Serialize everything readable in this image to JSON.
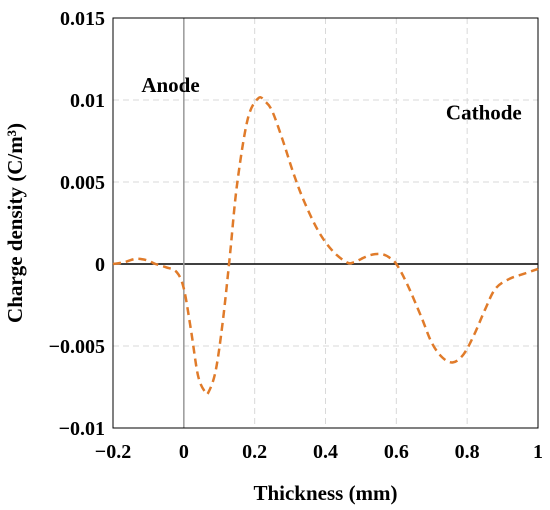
{
  "chart_data": {
    "type": "line",
    "xlabel": "Thickness (mm)",
    "ylabel": "Charge density (C/m³)",
    "xlim": [
      -0.2,
      1.0
    ],
    "ylim": [
      -0.01,
      0.015
    ],
    "x_ticks": [
      -0.2,
      0,
      0.2,
      0.4,
      0.6,
      0.8,
      1.0
    ],
    "x_tick_labels": [
      "−0.2",
      "0",
      "0.2",
      "0.4",
      "0.6",
      "0.8",
      "1"
    ],
    "y_ticks": [
      -0.01,
      -0.005,
      0,
      0.005,
      0.01,
      0.015
    ],
    "y_tick_labels": [
      "−0.01",
      "−0.005",
      "0",
      "0.005",
      "0.01",
      "0.015"
    ],
    "grid": true,
    "annotations": [
      {
        "text": "Anode",
        "x": -0.12,
        "y": 0.0105
      },
      {
        "text": "Cathode",
        "x": 0.74,
        "y": 0.0088
      }
    ],
    "markers": [
      {
        "x": 0,
        "description": "vertical line at zero thickness"
      }
    ],
    "series": [
      {
        "color": "#E07B2A",
        "style": "dashed",
        "x": [
          -0.2,
          -0.17,
          -0.14,
          -0.12,
          -0.1,
          -0.08,
          -0.05,
          -0.02,
          0.0,
          0.02,
          0.04,
          0.06,
          0.07,
          0.09,
          0.11,
          0.13,
          0.15,
          0.18,
          0.21,
          0.23,
          0.25,
          0.28,
          0.31,
          0.34,
          0.38,
          0.42,
          0.46,
          0.48,
          0.5,
          0.52,
          0.54,
          0.56,
          0.58,
          0.6,
          0.63,
          0.67,
          0.7,
          0.73,
          0.76,
          0.79,
          0.82,
          0.85,
          0.88,
          0.92,
          0.96,
          1.0
        ],
        "y": [
          0.0,
          0.0001,
          0.0003,
          0.0003,
          0.0002,
          0.0,
          -0.0002,
          -0.0005,
          -0.0015,
          -0.004,
          -0.0068,
          -0.0078,
          -0.0078,
          -0.0065,
          -0.0035,
          0.0005,
          0.0048,
          0.0088,
          0.0101,
          0.0099,
          0.0093,
          0.0075,
          0.0055,
          0.0038,
          0.002,
          0.0008,
          0.0001,
          0.0001,
          0.0003,
          0.0005,
          0.0006,
          0.0006,
          0.0004,
          0.0,
          -0.0012,
          -0.0032,
          -0.0048,
          -0.0057,
          -0.006,
          -0.0055,
          -0.0043,
          -0.0028,
          -0.0015,
          -0.0009,
          -0.0006,
          -0.0003
        ]
      }
    ]
  }
}
